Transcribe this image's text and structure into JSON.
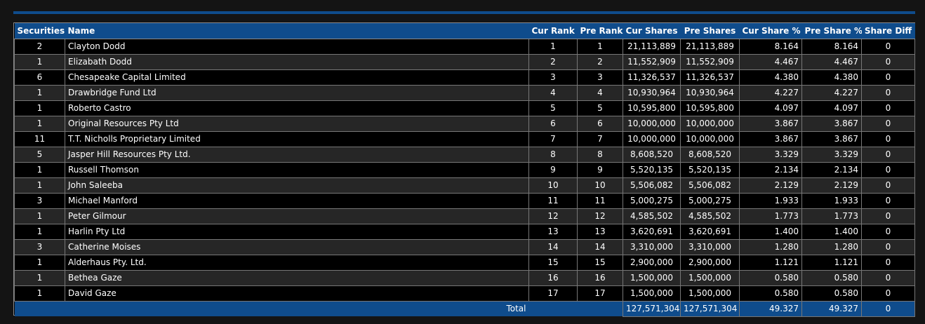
{
  "headers": {
    "securities": "Securities",
    "name": "Name",
    "cur_rank": "Cur Rank",
    "pre_rank": "Pre Rank",
    "cur_shares": "Cur Shares",
    "pre_shares": "Pre Shares",
    "cur_share_pct": "Cur Share %",
    "pre_share_pct": "Pre Share %",
    "share_diff": "Share Diff"
  },
  "rows": [
    {
      "securities": "2",
      "name": "Clayton Dodd",
      "cur_rank": "1",
      "pre_rank": "1",
      "cur_shares": "21,113,889",
      "pre_shares": "21,113,889",
      "cur_pct": "8.164",
      "pre_pct": "8.164",
      "diff": "0"
    },
    {
      "securities": "1",
      "name": "Elizabath Dodd",
      "cur_rank": "2",
      "pre_rank": "2",
      "cur_shares": "11,552,909",
      "pre_shares": "11,552,909",
      "cur_pct": "4.467",
      "pre_pct": "4.467",
      "diff": "0"
    },
    {
      "securities": "6",
      "name": "Chesapeake Capital Limited",
      "cur_rank": "3",
      "pre_rank": "3",
      "cur_shares": "11,326,537",
      "pre_shares": "11,326,537",
      "cur_pct": "4.380",
      "pre_pct": "4.380",
      "diff": "0"
    },
    {
      "securities": "1",
      "name": "Drawbridge Fund Ltd",
      "cur_rank": "4",
      "pre_rank": "4",
      "cur_shares": "10,930,964",
      "pre_shares": "10,930,964",
      "cur_pct": "4.227",
      "pre_pct": "4.227",
      "diff": "0"
    },
    {
      "securities": "1",
      "name": "Roberto Castro",
      "cur_rank": "5",
      "pre_rank": "5",
      "cur_shares": "10,595,800",
      "pre_shares": "10,595,800",
      "cur_pct": "4.097",
      "pre_pct": "4.097",
      "diff": "0"
    },
    {
      "securities": "1",
      "name": "Original Resources Pty Ltd",
      "cur_rank": "6",
      "pre_rank": "6",
      "cur_shares": "10,000,000",
      "pre_shares": "10,000,000",
      "cur_pct": "3.867",
      "pre_pct": "3.867",
      "diff": "0"
    },
    {
      "securities": "11",
      "name": "T.T. Nicholls Proprietary Limited",
      "cur_rank": "7",
      "pre_rank": "7",
      "cur_shares": "10,000,000",
      "pre_shares": "10,000,000",
      "cur_pct": "3.867",
      "pre_pct": "3.867",
      "diff": "0"
    },
    {
      "securities": "5",
      "name": "Jasper Hill Resources Pty Ltd.",
      "cur_rank": "8",
      "pre_rank": "8",
      "cur_shares": "8,608,520",
      "pre_shares": "8,608,520",
      "cur_pct": "3.329",
      "pre_pct": "3.329",
      "diff": "0"
    },
    {
      "securities": "1",
      "name": "Russell Thomson",
      "cur_rank": "9",
      "pre_rank": "9",
      "cur_shares": "5,520,135",
      "pre_shares": "5,520,135",
      "cur_pct": "2.134",
      "pre_pct": "2.134",
      "diff": "0"
    },
    {
      "securities": "1",
      "name": "John Saleeba",
      "cur_rank": "10",
      "pre_rank": "10",
      "cur_shares": "5,506,082",
      "pre_shares": "5,506,082",
      "cur_pct": "2.129",
      "pre_pct": "2.129",
      "diff": "0"
    },
    {
      "securities": "3",
      "name": "Michael Manford",
      "cur_rank": "11",
      "pre_rank": "11",
      "cur_shares": "5,000,275",
      "pre_shares": "5,000,275",
      "cur_pct": "1.933",
      "pre_pct": "1.933",
      "diff": "0"
    },
    {
      "securities": "1",
      "name": "Peter Gilmour",
      "cur_rank": "12",
      "pre_rank": "12",
      "cur_shares": "4,585,502",
      "pre_shares": "4,585,502",
      "cur_pct": "1.773",
      "pre_pct": "1.773",
      "diff": "0"
    },
    {
      "securities": "1",
      "name": "Harlin Pty Ltd",
      "cur_rank": "13",
      "pre_rank": "13",
      "cur_shares": "3,620,691",
      "pre_shares": "3,620,691",
      "cur_pct": "1.400",
      "pre_pct": "1.400",
      "diff": "0"
    },
    {
      "securities": "3",
      "name": "Catherine Moises",
      "cur_rank": "14",
      "pre_rank": "14",
      "cur_shares": "3,310,000",
      "pre_shares": "3,310,000",
      "cur_pct": "1.280",
      "pre_pct": "1.280",
      "diff": "0"
    },
    {
      "securities": "1",
      "name": "Alderhaus Pty. Ltd.",
      "cur_rank": "15",
      "pre_rank": "15",
      "cur_shares": "2,900,000",
      "pre_shares": "2,900,000",
      "cur_pct": "1.121",
      "pre_pct": "1.121",
      "diff": "0"
    },
    {
      "securities": "1",
      "name": "Bethea Gaze",
      "cur_rank": "16",
      "pre_rank": "16",
      "cur_shares": "1,500,000",
      "pre_shares": "1,500,000",
      "cur_pct": "0.580",
      "pre_pct": "0.580",
      "diff": "0"
    },
    {
      "securities": "1",
      "name": "David Gaze",
      "cur_rank": "17",
      "pre_rank": "17",
      "cur_shares": "1,500,000",
      "pre_shares": "1,500,000",
      "cur_pct": "0.580",
      "pre_pct": "0.580",
      "diff": "0"
    }
  ],
  "total": {
    "label": "Total",
    "cur_shares": "127,571,304",
    "pre_shares": "127,571,304",
    "cur_pct": "49.327",
    "pre_pct": "49.327",
    "diff": "0"
  }
}
